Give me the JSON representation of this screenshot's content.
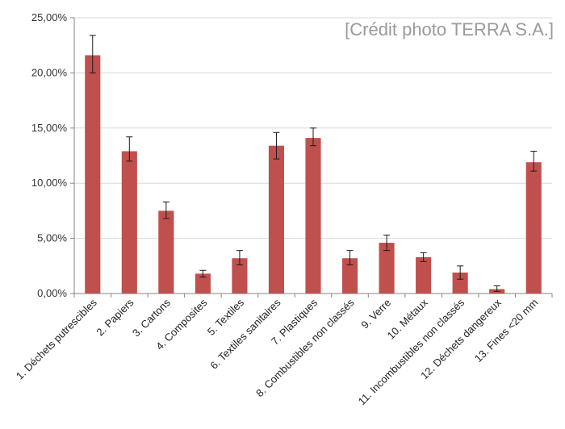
{
  "credit": "[Crédit photo TERRA S.A.]",
  "chart_data": {
    "type": "bar",
    "title": "",
    "xlabel": "",
    "ylabel": "",
    "ylim": [
      0,
      25
    ],
    "yticks": [
      "0,00%",
      "5,00%",
      "10,00%",
      "15,00%",
      "20,00%",
      "25,00%"
    ],
    "bar_color": "#c0504d",
    "grid": true,
    "categories": [
      "1. Déchets putrescibles",
      "2. Papiers",
      "3. Cartons",
      "4. Composites",
      "5. Textiles",
      "6. Textiles sanitaires",
      "7. Plastiques",
      "8. Combustibles non classés",
      "9. Verre",
      "10. Métaux",
      "11. Incombustibles non classés",
      "12. Déchets dangereux",
      "13. Fines <20 mm"
    ],
    "values": [
      21.6,
      12.9,
      7.5,
      1.8,
      3.2,
      13.4,
      14.1,
      3.2,
      4.6,
      3.3,
      1.9,
      0.4,
      11.9
    ],
    "error_low": [
      1.6,
      0.9,
      0.7,
      0.3,
      0.6,
      1.2,
      0.7,
      0.6,
      0.7,
      0.4,
      0.6,
      0.2,
      0.8
    ],
    "error_high": [
      1.8,
      1.3,
      0.8,
      0.3,
      0.7,
      1.2,
      0.9,
      0.7,
      0.7,
      0.4,
      0.6,
      0.3,
      1.0
    ]
  }
}
